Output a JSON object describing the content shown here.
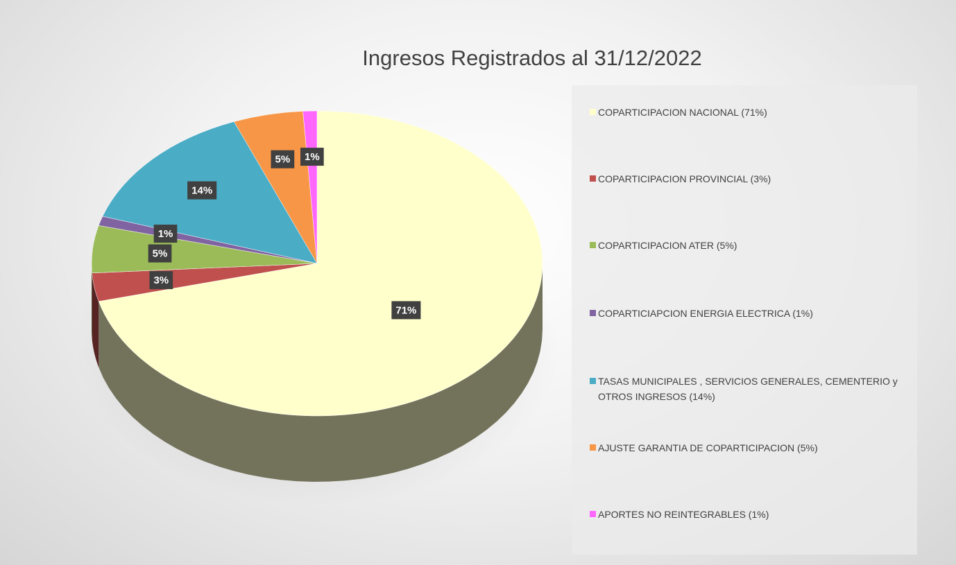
{
  "chart_data": {
    "type": "pie",
    "title": "Ingresos Registrados al 31/12/2022",
    "categories": [
      "COPARTICIPACION NACIONAL (71%)",
      "COPARTICIPACION PROVINCIAL (3%)",
      "COPARTICIPACION ATER (5%)",
      "COPARTICIAPCION ENERGIA ELECTRICA (1%)",
      "TASAS MUNICIPALES , SERVICIOS GENERALES, CEMENTERIO y OTROS INGRESOS  (14%)",
      "AJUSTE GARANTIA DE COPARTICIPACION (5%)",
      "APORTES  NO REINTEGRABLES (1%)"
    ],
    "values": [
      71,
      3,
      5,
      1,
      14,
      5,
      1
    ],
    "value_labels": [
      "71%",
      "3%",
      "5%",
      "1%",
      "14%",
      "5%",
      "1%"
    ],
    "colors": [
      "#ffffcc",
      "#c0504d",
      "#9bbb59",
      "#8064a2",
      "#4bacc6",
      "#f79646",
      "#ff66ff"
    ],
    "legend": "right"
  }
}
